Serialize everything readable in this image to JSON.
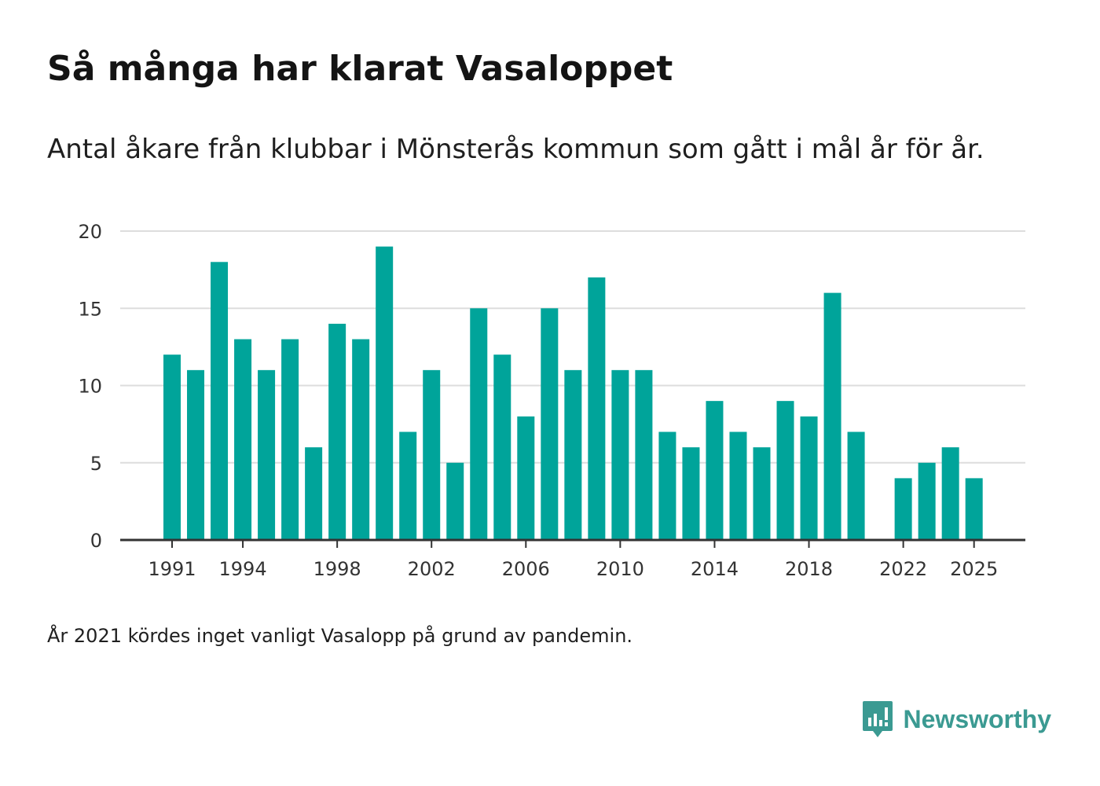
{
  "header": {
    "title": "Så många har klarat Vasaloppet",
    "subtitle": "Antal åkare från klubbar i Mönsterås kommun som gått i mål år för år."
  },
  "footer": {
    "note": "År 2021 kördes inget vanligt Vasalopp på grund av pandemin.",
    "brand": "Newsworthy"
  },
  "colors": {
    "bar": "#00a49a",
    "grid": "#dddddd",
    "axis": "#333333",
    "brand": "#3b9a92"
  },
  "chart_data": {
    "type": "bar",
    "title": "Så många har klarat Vasaloppet",
    "xlabel": "",
    "ylabel": "",
    "ylim": [
      0,
      20
    ],
    "yticks": [
      0,
      5,
      10,
      15,
      20
    ],
    "xtick_labels": [
      "1991",
      "1994",
      "1998",
      "2002",
      "2006",
      "2010",
      "2014",
      "2018",
      "2022",
      "2025"
    ],
    "categories": [
      1991,
      1992,
      1993,
      1994,
      1995,
      1996,
      1997,
      1998,
      1999,
      2000,
      2001,
      2002,
      2003,
      2004,
      2005,
      2006,
      2007,
      2008,
      2009,
      2010,
      2011,
      2012,
      2013,
      2014,
      2015,
      2016,
      2017,
      2018,
      2019,
      2020,
      2021,
      2022,
      2023,
      2024,
      2025
    ],
    "values": [
      12,
      11,
      18,
      13,
      11,
      13,
      6,
      14,
      13,
      19,
      7,
      11,
      5,
      15,
      12,
      8,
      15,
      11,
      17,
      11,
      11,
      7,
      6,
      9,
      7,
      6,
      9,
      8,
      16,
      7,
      null,
      4,
      5,
      6,
      4
    ]
  }
}
